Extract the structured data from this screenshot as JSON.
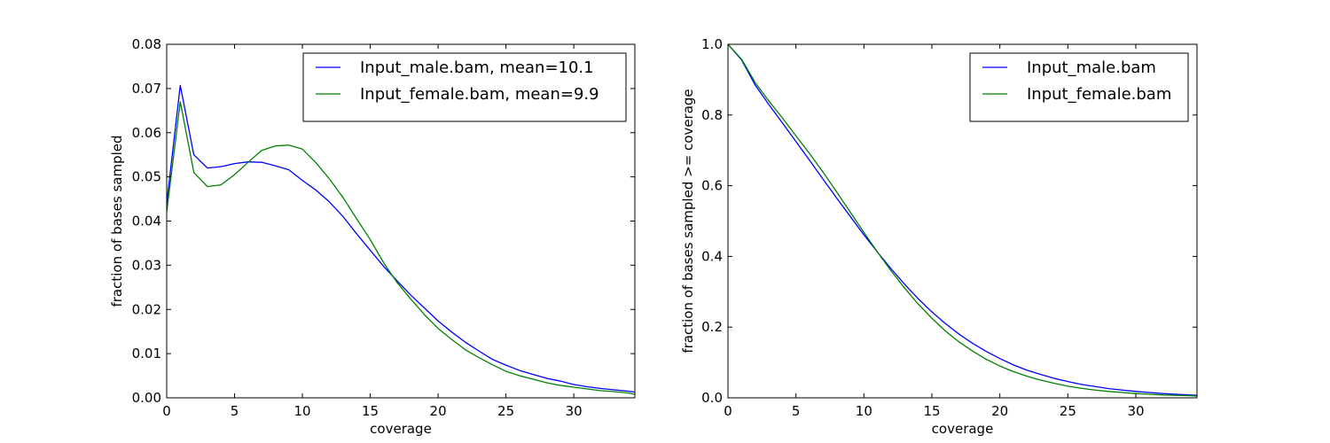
{
  "chart_data": [
    {
      "type": "line",
      "xlabel": "coverage",
      "ylabel": "fraction of bases sampled",
      "xlim": [
        0,
        34.5
      ],
      "ylim": [
        0,
        0.08
      ],
      "x_ticks": [
        0,
        5,
        10,
        15,
        20,
        25,
        30
      ],
      "x_tick_labels": [
        "0",
        "5",
        "10",
        "15",
        "20",
        "25",
        "30"
      ],
      "y_ticks": [
        0,
        0.01,
        0.02,
        0.03,
        0.04,
        0.05,
        0.06,
        0.07,
        0.08
      ],
      "y_tick_labels": [
        "0.00",
        "0.01",
        "0.02",
        "0.03",
        "0.04",
        "0.05",
        "0.06",
        "0.07",
        "0.08"
      ],
      "grid": false,
      "legend_position": "top-right",
      "series": [
        {
          "name": "Input_male.bam, mean=10.1",
          "color": "#0000ff",
          "x": [
            0,
            1,
            2,
            3,
            4,
            5,
            6,
            7,
            8,
            9,
            10,
            11,
            12,
            13,
            14,
            15,
            16,
            17,
            18,
            19,
            20,
            21,
            22,
            23,
            24,
            25,
            26,
            27,
            28,
            29,
            30,
            31,
            32,
            33,
            34,
            34.5
          ],
          "y": [
            0.044,
            0.0707,
            0.055,
            0.052,
            0.0523,
            0.053,
            0.0534,
            0.0533,
            0.0525,
            0.0516,
            0.0492,
            0.047,
            0.0443,
            0.041,
            0.0371,
            0.0334,
            0.0297,
            0.0264,
            0.0232,
            0.0203,
            0.0174,
            0.0149,
            0.0126,
            0.0106,
            0.0087,
            0.0074,
            0.0062,
            0.0053,
            0.0044,
            0.0038,
            0.003,
            0.0025,
            0.0021,
            0.0018,
            0.0015,
            0.0013
          ]
        },
        {
          "name": "Input_female.bam, mean=9.9",
          "color": "#008000",
          "x": [
            0,
            1,
            2,
            3,
            4,
            5,
            6,
            7,
            8,
            9,
            10,
            11,
            12,
            13,
            14,
            15,
            16,
            17,
            18,
            19,
            20,
            21,
            22,
            23,
            24,
            25,
            26,
            27,
            28,
            29,
            30,
            31,
            32,
            33,
            34,
            34.5
          ],
          "y": [
            0.042,
            0.067,
            0.051,
            0.0478,
            0.0482,
            0.0505,
            0.0533,
            0.056,
            0.057,
            0.0572,
            0.0563,
            0.0532,
            0.0495,
            0.0453,
            0.0405,
            0.0358,
            0.0305,
            0.026,
            0.0223,
            0.0188,
            0.0157,
            0.0132,
            0.0109,
            0.0091,
            0.0075,
            0.006,
            0.005,
            0.0042,
            0.0034,
            0.0028,
            0.0024,
            0.002,
            0.0016,
            0.0014,
            0.0011,
            0.0008
          ]
        }
      ]
    },
    {
      "type": "line",
      "xlabel": "coverage",
      "ylabel": "fraction of bases sampled >= coverage",
      "xlim": [
        0,
        34.5
      ],
      "ylim": [
        0,
        1.0
      ],
      "x_ticks": [
        0,
        5,
        10,
        15,
        20,
        25,
        30
      ],
      "x_tick_labels": [
        "0",
        "5",
        "10",
        "15",
        "20",
        "25",
        "30"
      ],
      "y_ticks": [
        0,
        0.2,
        0.4,
        0.6,
        0.8,
        1.0
      ],
      "y_tick_labels": [
        "0.0",
        "0.2",
        "0.4",
        "0.6",
        "0.8",
        "1.0"
      ],
      "grid": false,
      "legend_position": "top-right",
      "series": [
        {
          "name": "Input_male.bam",
          "color": "#0000ff",
          "x": [
            0,
            1,
            2,
            3,
            4,
            5,
            6,
            7,
            8,
            9,
            10,
            11,
            12,
            13,
            14,
            15,
            16,
            17,
            18,
            19,
            20,
            21,
            22,
            23,
            24,
            25,
            26,
            27,
            28,
            29,
            30,
            31,
            32,
            33,
            34,
            34.5
          ],
          "y": [
            1.0,
            0.956,
            0.885,
            0.83,
            0.778,
            0.725,
            0.672,
            0.618,
            0.565,
            0.513,
            0.461,
            0.412,
            0.365,
            0.321,
            0.28,
            0.243,
            0.21,
            0.18,
            0.154,
            0.131,
            0.111,
            0.093,
            0.078,
            0.066,
            0.055,
            0.046,
            0.038,
            0.032,
            0.026,
            0.022,
            0.018,
            0.015,
            0.012,
            0.01,
            0.008,
            0.007
          ]
        },
        {
          "name": "Input_female.bam",
          "color": "#008000",
          "x": [
            0,
            1,
            2,
            3,
            4,
            5,
            6,
            7,
            8,
            9,
            10,
            11,
            12,
            13,
            14,
            15,
            16,
            17,
            18,
            19,
            20,
            21,
            22,
            23,
            24,
            25,
            26,
            27,
            28,
            29,
            30,
            31,
            32,
            33,
            34,
            34.5
          ],
          "y": [
            1.0,
            0.958,
            0.892,
            0.84,
            0.792,
            0.741,
            0.691,
            0.638,
            0.582,
            0.525,
            0.468,
            0.412,
            0.359,
            0.31,
            0.265,
            0.225,
            0.189,
            0.158,
            0.132,
            0.109,
            0.09,
            0.074,
            0.061,
            0.05,
            0.041,
            0.033,
            0.027,
            0.022,
            0.018,
            0.015,
            0.012,
            0.01,
            0.008,
            0.007,
            0.006,
            0.005
          ]
        }
      ]
    }
  ]
}
